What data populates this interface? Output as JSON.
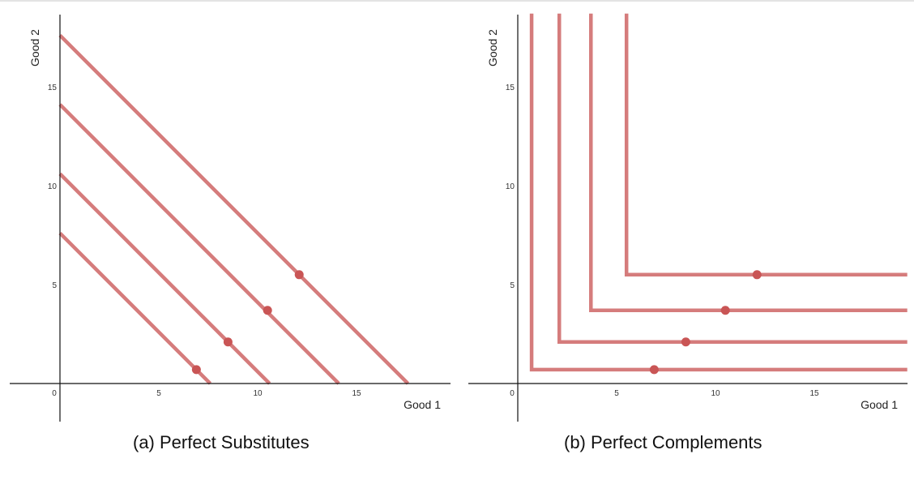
{
  "colors": {
    "curve": "#d57c7c",
    "point": "#c95555",
    "axis": "#111111"
  },
  "chart_data": [
    {
      "type": "line",
      "caption": "(a) Perfect Substitutes",
      "xlabel": "Good 1",
      "ylabel": "Good 2",
      "xticks": [
        0,
        5,
        10,
        15
      ],
      "yticks": [
        5,
        10,
        15
      ],
      "xlim": [
        -0.3,
        19.7
      ],
      "ylim": [
        -2,
        18.7
      ],
      "grid": false,
      "series": [
        {
          "values": [
            [
              0,
              7.6
            ],
            [
              7.6,
              0
            ]
          ],
          "point": [
            6.9,
            0.7
          ]
        },
        {
          "values": [
            [
              0,
              10.6
            ],
            [
              10.6,
              0
            ]
          ],
          "point": [
            8.5,
            2.1
          ]
        },
        {
          "values": [
            [
              0,
              14.1
            ],
            [
              14.1,
              0
            ]
          ],
          "point": [
            10.5,
            3.7
          ]
        },
        {
          "values": [
            [
              0,
              17.6
            ],
            [
              17.6,
              0
            ]
          ],
          "point": [
            12.1,
            5.5
          ]
        }
      ]
    },
    {
      "type": "line",
      "caption": "(b) Perfect Complements",
      "xlabel": "Good 1",
      "ylabel": "Good 2",
      "xticks": [
        0,
        5,
        10,
        15
      ],
      "yticks": [
        5,
        10,
        15
      ],
      "xlim": [
        -0.3,
        19.7
      ],
      "ylim": [
        -2,
        18.7
      ],
      "grid": false,
      "series": [
        {
          "values": [
            [
              0.7,
              18.7
            ],
            [
              0.7,
              0.7
            ],
            [
              19.7,
              0.7
            ]
          ],
          "point": [
            6.9,
            0.7
          ]
        },
        {
          "values": [
            [
              2.1,
              18.7
            ],
            [
              2.1,
              2.1
            ],
            [
              19.7,
              2.1
            ]
          ],
          "point": [
            8.5,
            2.1
          ]
        },
        {
          "values": [
            [
              3.7,
              18.7
            ],
            [
              3.7,
              3.7
            ],
            [
              19.7,
              3.7
            ]
          ],
          "point": [
            10.5,
            3.7
          ]
        },
        {
          "values": [
            [
              5.5,
              18.7
            ],
            [
              5.5,
              5.5
            ],
            [
              19.7,
              5.5
            ]
          ],
          "point": [
            12.1,
            5.5
          ]
        }
      ]
    }
  ]
}
